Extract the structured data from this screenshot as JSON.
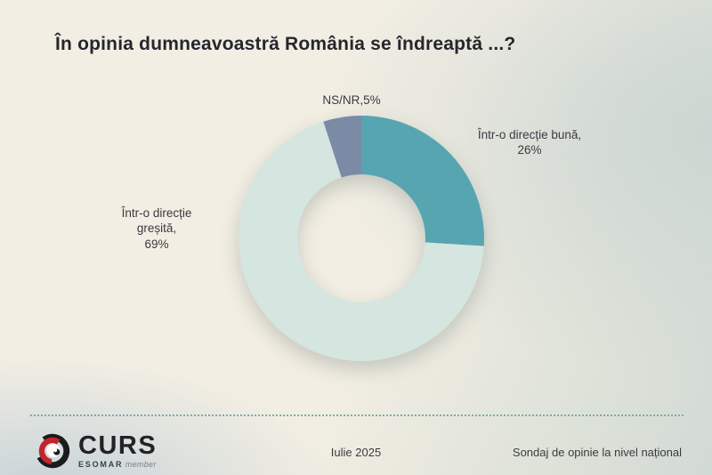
{
  "title": "În opinia dumneavoastră România se îndreaptă ...?",
  "chart_data": {
    "type": "pie",
    "subtype": "donut",
    "title": "În opinia dumneavoastră România se îndreaptă ...?",
    "slices": [
      {
        "label": "Într-o direcție bună",
        "value": 26,
        "color": "#57a5b1"
      },
      {
        "label": "Într-o direcție greșită",
        "value": 69,
        "color": "#d5e5e0"
      },
      {
        "label": "NS/NR",
        "value": 5,
        "color": "#7b8ba6"
      }
    ],
    "start_angle_deg": 0,
    "direction": "clockwise",
    "inner_radius_ratio": 0.52,
    "legend": "none — direct labels around the donut"
  },
  "slice_labels": {
    "nsnr": "NS/NR,5%",
    "buna_lines": [
      "Într-o direcție bună,",
      "26%"
    ],
    "gresita_lines": [
      "Într-o direcție",
      "greșită,",
      "69%"
    ]
  },
  "footer": {
    "logo_text": "CURS",
    "logo_subtext_esomar": "ESOMAR",
    "logo_subtext_member": "member",
    "date": "Iulie 2025",
    "note": "Sondaj de opinie la nivel național"
  },
  "colors": {
    "accent_teal": "#57a5b1",
    "mint": "#d5e5e0",
    "gray_blue": "#7b8ba6",
    "divider": "#79aaad",
    "title_text": "#26262e",
    "body_text": "#3a3a41",
    "logo_red": "#c2252b",
    "logo_black": "#1b1b1d"
  }
}
